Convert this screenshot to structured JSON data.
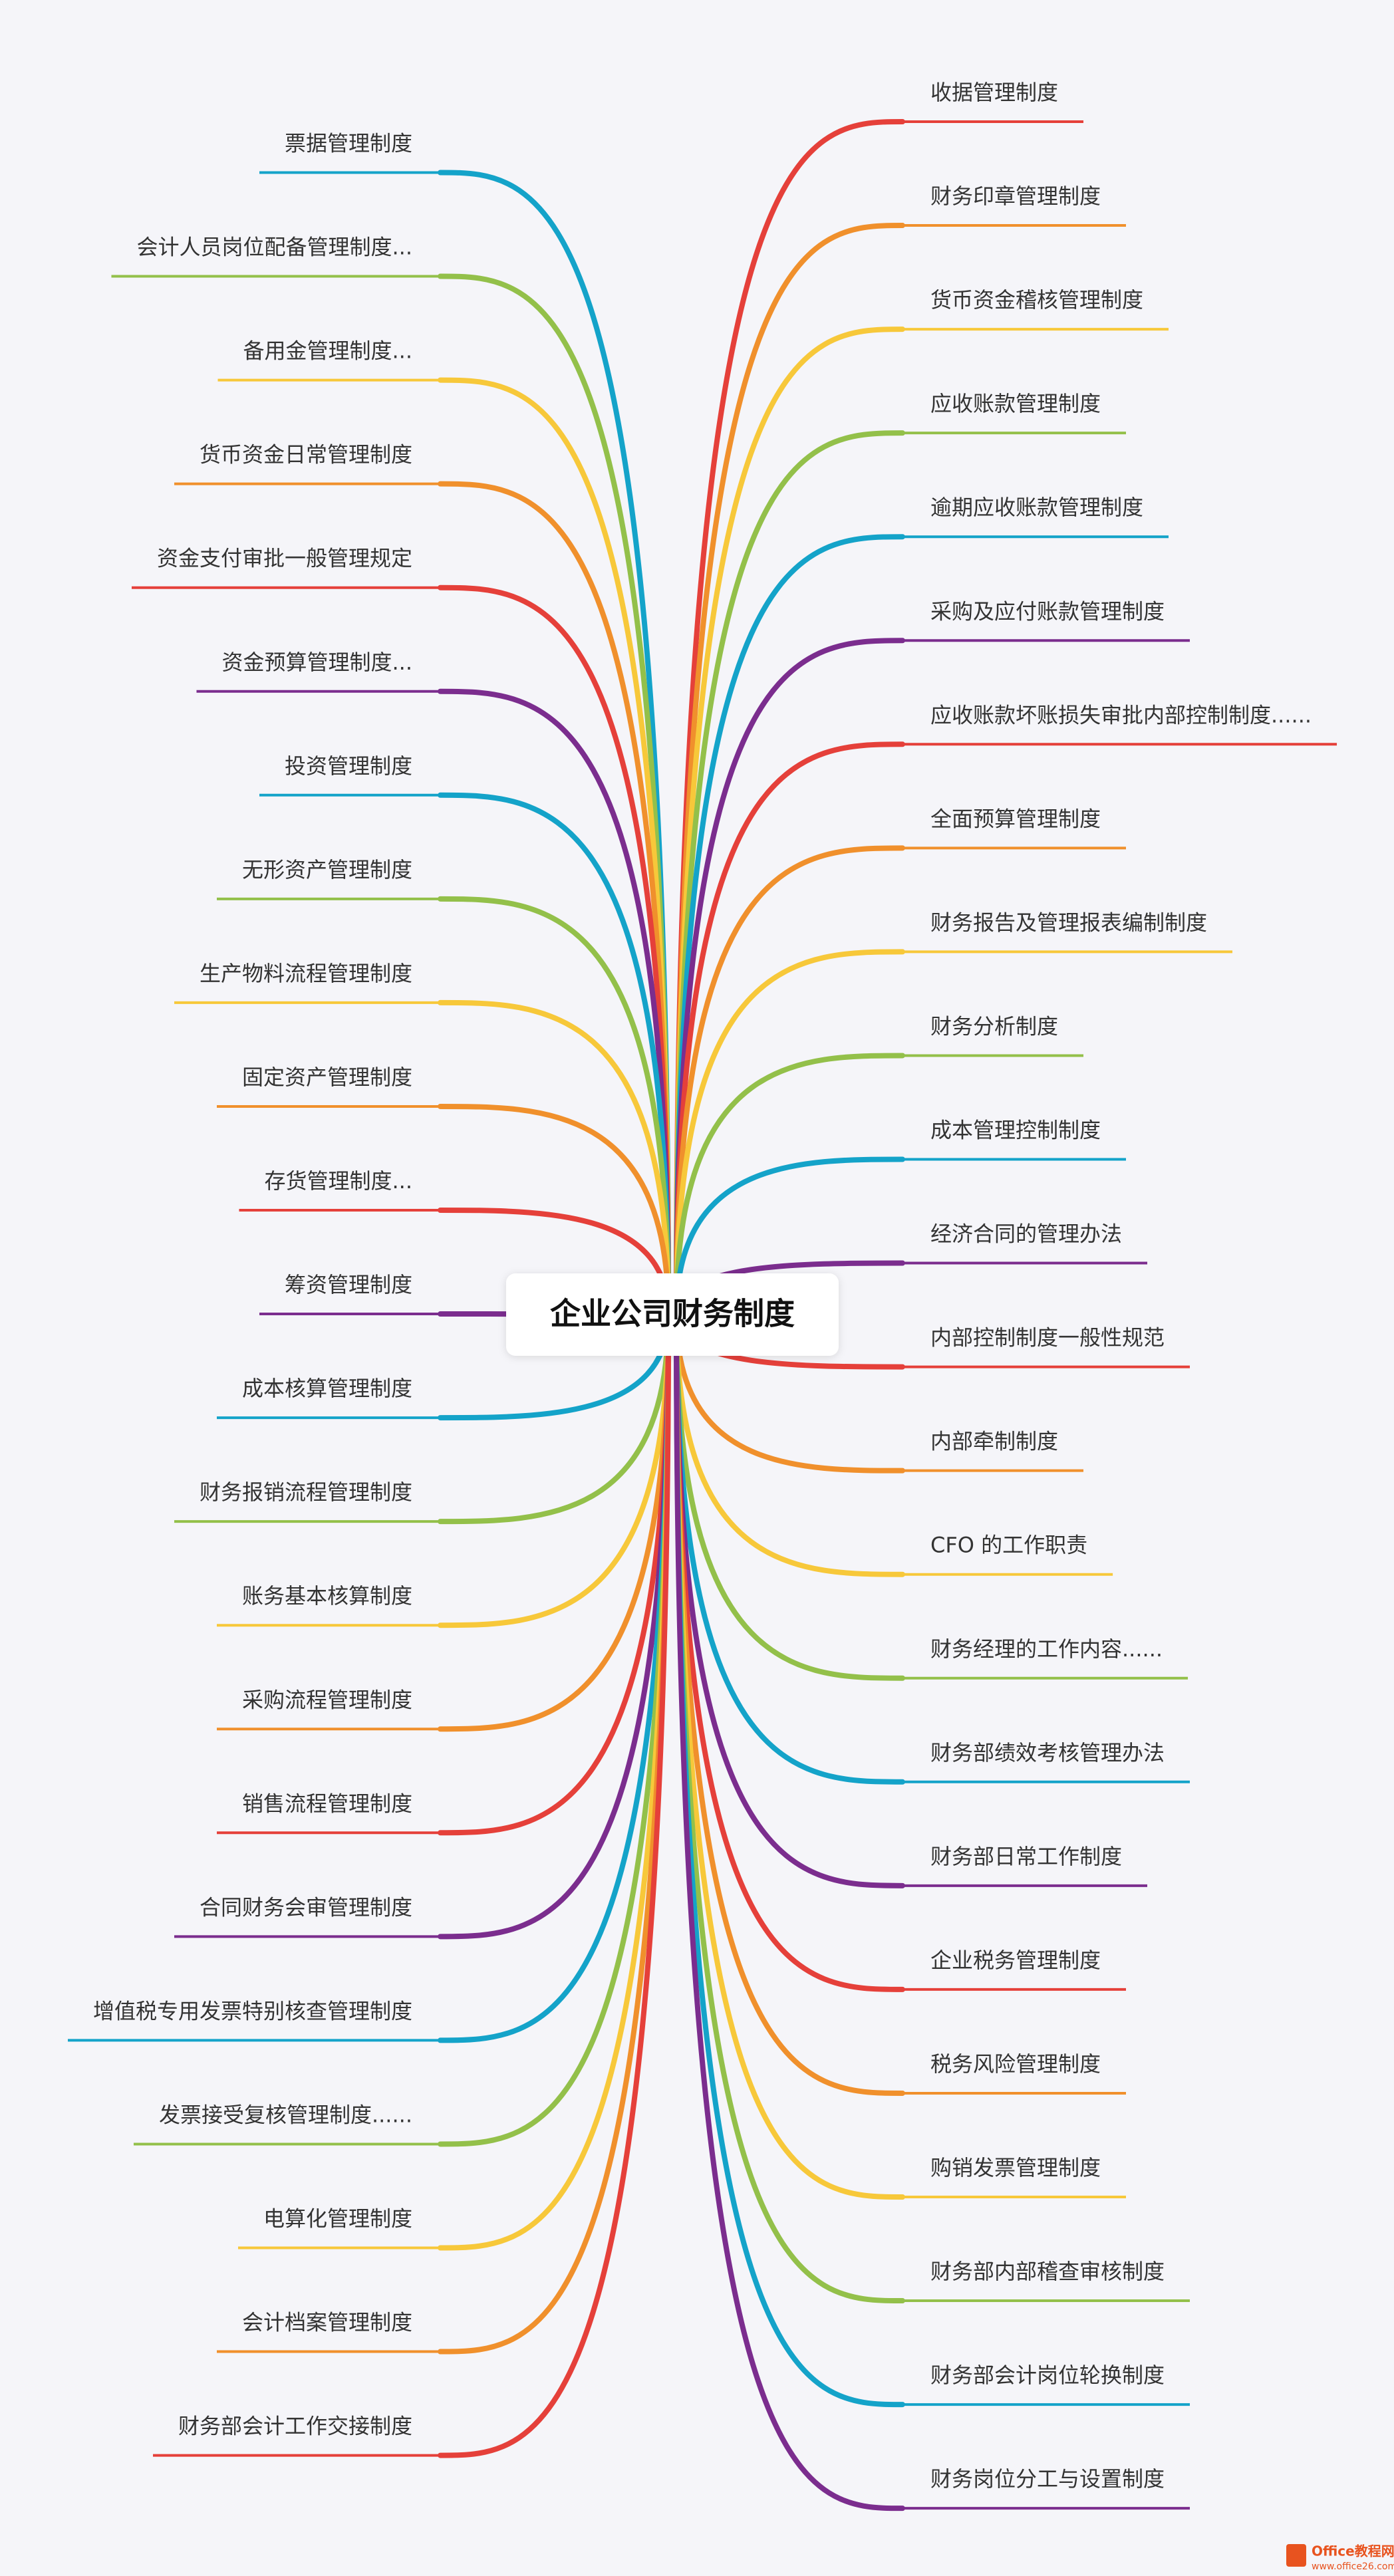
{
  "center": "企业公司财务制度",
  "left": [
    "票据管理制度",
    "会计人员岗位配备管理制度...",
    "备用金管理制度...",
    "货币资金日常管理制度",
    "资金支付审批一般管理规定",
    "资金预算管理制度...",
    "投资管理制度",
    "无形资产管理制度",
    "生产物料流程管理制度",
    "固定资产管理制度",
    "存货管理制度...",
    "筹资管理制度",
    "成本核算管理制度",
    "财务报销流程管理制度",
    "账务基本核算制度",
    "采购流程管理制度",
    "销售流程管理制度",
    "合同财务会审管理制度",
    "增值税专用发票特别核查管理制度",
    "发票接受复核管理制度......",
    "电算化管理制度",
    "会计档案管理制度",
    "财务部会计工作交接制度"
  ],
  "right": [
    "收据管理制度",
    "财务印章管理制度",
    "货币资金稽核管理制度",
    "应收账款管理制度",
    "逾期应收账款管理制度",
    "采购及应付账款管理制度",
    "应收账款坏账损失审批内部控制制度......",
    "全面预算管理制度",
    "财务报告及管理报表编制制度",
    "财务分析制度",
    "成本管理控制制度",
    "经济合同的管理办法",
    "内部控制制度一般性规范",
    "内部牵制制度",
    "CFO 的工作职责",
    "财务经理的工作内容......",
    "财务部绩效考核管理办法",
    "财务部日常工作制度",
    "企业税务管理制度",
    "税务风险管理制度",
    "购销发票管理制度",
    "财务部内部稽查审核制度",
    "财务部会计岗位轮换制度",
    "财务岗位分工与设置制度"
  ],
  "watermark": {
    "brand": "Office教程网",
    "url": "www.office26.com"
  }
}
